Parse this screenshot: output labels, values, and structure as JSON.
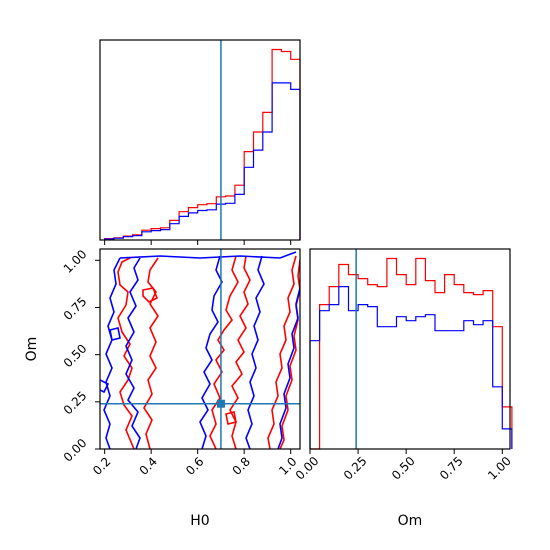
{
  "chart_data": [
    {
      "type": "histogram",
      "panel": "H0 marginal",
      "x": [
        0.2,
        0.24,
        0.28,
        0.32,
        0.36,
        0.4,
        0.44,
        0.48,
        0.52,
        0.56,
        0.6,
        0.64,
        0.68,
        0.72,
        0.76,
        0.8,
        0.84,
        0.88,
        0.92,
        0.96,
        1.0
      ],
      "xlim": [
        0.18,
        1.04
      ],
      "truth": 0.7,
      "series": [
        {
          "color": "#ff0000",
          "values": [
            0.7,
            1.1,
            2.0,
            2.6,
            5.0,
            5.8,
            6.2,
            10.0,
            14.4,
            16.5,
            18.0,
            18.5,
            22.0,
            22.4,
            27.9,
            45.0,
            55.0,
            65.0,
            97.0,
            96.0,
            92.0
          ]
        },
        {
          "color": "#0000ff",
          "values": [
            0.5,
            0.9,
            1.7,
            2.2,
            4.2,
            4.8,
            5.3,
            8.3,
            12.0,
            13.8,
            15.0,
            15.4,
            18.3,
            18.7,
            23.2,
            37.0,
            45.8,
            55.0,
            80.0,
            80.0,
            76.7
          ]
        }
      ]
    },
    {
      "type": "contour",
      "panel": "H0 vs Om",
      "xlabel": "H0",
      "ylabel": "Om",
      "xlim": [
        0.18,
        1.04
      ],
      "ylim": [
        0.0,
        1.06
      ],
      "xticks": [
        "0.2",
        "0.4",
        "0.6",
        "0.8",
        "1.0"
      ],
      "yticks": [
        "0.00",
        "0.25",
        "0.50",
        "0.75",
        "1.00"
      ],
      "truth": {
        "H0": 0.7,
        "Om": 0.24
      },
      "series": [
        {
          "color": "#ff0000"
        },
        {
          "color": "#0000ff"
        }
      ]
    },
    {
      "type": "histogram",
      "panel": "Om marginal",
      "xlabel": "Om",
      "x": [
        0.0,
        0.05,
        0.1,
        0.15,
        0.2,
        0.25,
        0.3,
        0.35,
        0.4,
        0.45,
        0.5,
        0.55,
        0.6,
        0.65,
        0.7,
        0.75,
        0.8,
        0.85,
        0.9,
        0.95,
        1.0
      ],
      "xlim": [
        0.0,
        1.04
      ],
      "xticks": [
        "0.00",
        "0.25",
        "0.50",
        "0.75",
        "1.00"
      ],
      "truth": 0.24,
      "series": [
        {
          "color": "#ff0000",
          "values": [
            0,
            72,
            81,
            92,
            87,
            85,
            82,
            81,
            95,
            87,
            82,
            95,
            84,
            78,
            87,
            82,
            78,
            77,
            79,
            61,
            21
          ]
        },
        {
          "color": "#0000ff",
          "values": [
            54,
            69,
            72,
            81,
            69,
            72,
            71,
            61,
            61,
            66,
            64,
            66,
            67,
            59,
            59,
            59,
            64,
            62,
            64,
            31,
            10
          ]
        }
      ]
    }
  ]
}
